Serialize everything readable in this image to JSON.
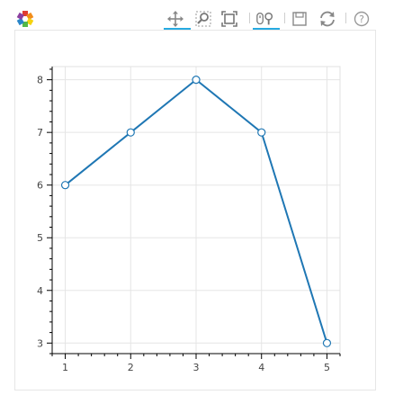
{
  "toolbar": {
    "logo": "bokeh-logo-icon",
    "tools": [
      {
        "name": "pan-tool",
        "icon": "move-icon",
        "active": true
      },
      {
        "name": "box-zoom-tool",
        "icon": "box-zoom-icon",
        "active": false
      },
      {
        "name": "zoom-reset-tool",
        "icon": "zoom-extents-icon",
        "active": false
      },
      {
        "name": "wheel-zoom-tool",
        "icon": "wheel-zoom-icon",
        "active": true
      },
      {
        "name": "save-tool",
        "icon": "save-icon",
        "active": false
      },
      {
        "name": "reset-tool",
        "icon": "refresh-icon",
        "active": false
      },
      {
        "name": "help-tool",
        "icon": "help-icon",
        "active": false
      }
    ],
    "active_color": "#26aae1"
  },
  "chart_data": {
    "type": "line",
    "x": [
      1,
      2,
      3,
      4,
      5
    ],
    "series": [
      {
        "values": [
          6,
          7,
          8,
          7,
          3
        ],
        "color": "#1f77b4",
        "marker": "circle"
      }
    ],
    "xticks": [
      1,
      2,
      3,
      4,
      5
    ],
    "yticks": [
      3,
      4,
      5,
      6,
      7,
      8
    ],
    "xlim": [
      0.8,
      5.2
    ],
    "ylim": [
      2.8,
      8.25
    ],
    "grid": true,
    "title": "",
    "xlabel": "",
    "ylabel": ""
  }
}
